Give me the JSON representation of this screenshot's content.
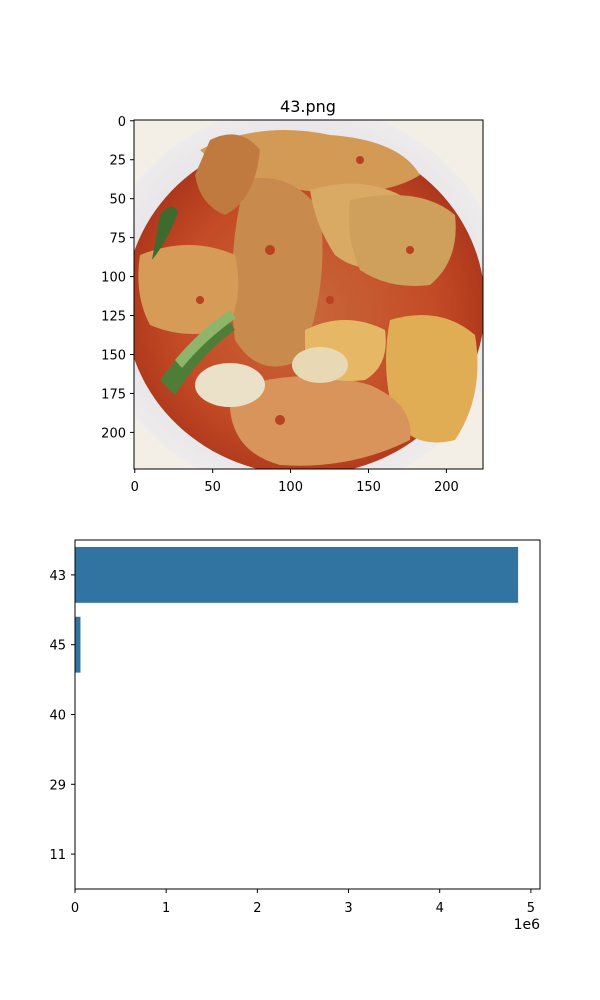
{
  "chart_data": [
    {
      "type": "image",
      "title": "43.png",
      "x_ticks": [
        "0",
        "50",
        "100",
        "150",
        "200"
      ],
      "y_ticks": [
        "0",
        "25",
        "50",
        "75",
        "100",
        "125",
        "150",
        "175",
        "200"
      ],
      "xlim": [
        -0.5,
        223.5
      ],
      "ylim": [
        223.5,
        -0.5
      ],
      "grid": false
    },
    {
      "type": "bar",
      "orientation": "horizontal",
      "categories": [
        "43",
        "45",
        "40",
        "29",
        "11"
      ],
      "values": [
        4860000,
        60000,
        0,
        0,
        0
      ],
      "x_ticks": [
        "0",
        "1",
        "2",
        "3",
        "4",
        "5"
      ],
      "x_tick_values": [
        0,
        1000000,
        2000000,
        3000000,
        4000000,
        5000000
      ],
      "x_offset_text": "1e6",
      "xlim": [
        0,
        5100000
      ],
      "color": "#3274a1",
      "grid": false
    }
  ]
}
